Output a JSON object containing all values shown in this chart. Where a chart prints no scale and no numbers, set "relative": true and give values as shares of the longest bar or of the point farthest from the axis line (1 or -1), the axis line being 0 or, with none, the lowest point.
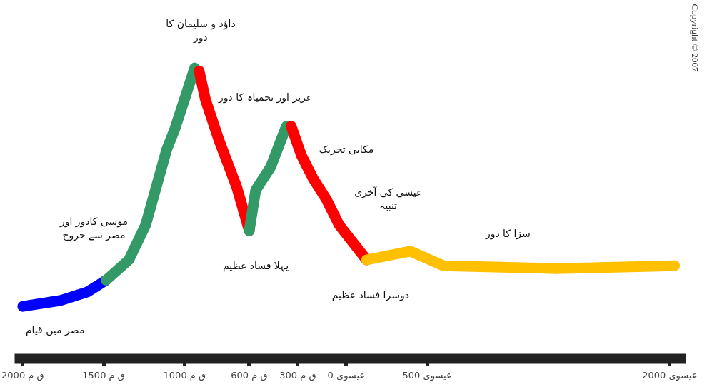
{
  "chart_data": {
    "type": "line",
    "relative": true,
    "line_style": "solid",
    "grid": false,
    "xlim": [
      -2050,
      2100
    ],
    "xticks": [
      {
        "value": -2000,
        "label": "2000 ق م"
      },
      {
        "value": -1500,
        "label": "1500 ق م"
      },
      {
        "value": -1000,
        "label": "1000 ق م"
      },
      {
        "value": -600,
        "label": "600 ق م"
      },
      {
        "value": -300,
        "label": "300 ق م"
      },
      {
        "value": 0,
        "label": "0 عیسوی"
      },
      {
        "value": 500,
        "label": "500 عیسوی"
      },
      {
        "value": 2000,
        "label": "2000 عیسوی"
      }
    ],
    "series": [
      {
        "color": "#0000ff",
        "x": [
          -2000,
          -1770,
          -1600,
          -1485
        ],
        "values": [
          0.18,
          0.2,
          0.23,
          0.27
        ]
      },
      {
        "color": "#339966",
        "x": [
          -1485,
          -1344,
          -1240,
          -1110,
          -1060,
          -937
        ],
        "values": [
          0.27,
          0.34,
          0.46,
          0.72,
          0.79,
          1
        ]
      },
      {
        "color": "#ff0000",
        "x": [
          -910,
          -870,
          -786,
          -677,
          -600
        ],
        "values": [
          0.99,
          0.89,
          0.75,
          0.59,
          0.44
        ]
      },
      {
        "color": "#339966",
        "x": [
          -600,
          -560,
          -467,
          -405,
          -370
        ],
        "values": [
          0.44,
          0.58,
          0.66,
          0.75,
          0.8
        ]
      },
      {
        "color": "#ff0000",
        "x": [
          -341,
          -278,
          -205,
          -125,
          -44,
          126
        ],
        "values": [
          0.8,
          0.7,
          0.62,
          0.55,
          0.46,
          0.34
        ]
      },
      {
        "color": "#ffc000",
        "x": [
          126,
          396,
          600,
          1300,
          2030
        ],
        "values": [
          0.34,
          0.37,
          0.32,
          0.31,
          0.32
        ]
      }
    ],
    "annotations": [
      "مصر میں قیام",
      "موسی کادور اور\nمصر سے خروج",
      "داؤد و سلیمان کا\nدور",
      "پہلا فساد عظیم",
      "عزیر اور نحمیاہ کا دور",
      "مکابی تحریک",
      "عیسی کی آخری\nتنبیہ",
      "دوسرا فساد عظیم",
      "سزا کا دور",
      "Copyright © 2007"
    ]
  }
}
